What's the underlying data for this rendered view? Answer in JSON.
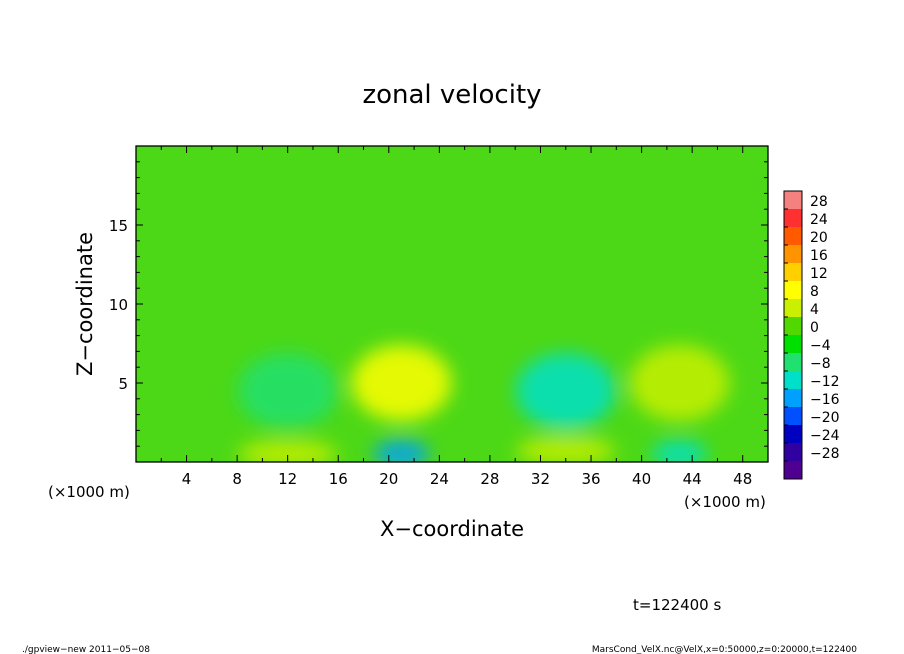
{
  "chart_data": {
    "type": "heatmap",
    "title": "zonal velocity",
    "xlabel": "X−coordinate",
    "ylabel": "Z−coordinate",
    "x_unit": "(×1000 m)",
    "xlim": [
      0,
      50
    ],
    "ylim": [
      0,
      20
    ],
    "x_ticks": [
      "4",
      "8",
      "12",
      "16",
      "20",
      "24",
      "28",
      "32",
      "36",
      "40",
      "44",
      "48"
    ],
    "y_ticks": [
      "5",
      "10",
      "15"
    ],
    "time_label": "t=122400 s",
    "colorbar": {
      "levels": [
        "28",
        "24",
        "20",
        "16",
        "12",
        "8",
        "4",
        "0",
        "−4",
        "−8",
        "−12",
        "−16",
        "−20",
        "−24",
        "−28"
      ],
      "colors": [
        "#f48080",
        "#ff3030",
        "#ff5a00",
        "#ff9400",
        "#ffd000",
        "#ffff00",
        "#c8f000",
        "#50d800",
        "#00e000",
        "#20e070",
        "#00e0c8",
        "#00a0ff",
        "#0050ff",
        "#0000c0",
        "#3000a0",
        "#500090"
      ]
    },
    "features": [
      {
        "x": 21,
        "z": 5,
        "sign": "positive",
        "value": 8
      },
      {
        "x": 43,
        "z": 5,
        "sign": "positive",
        "value": 6
      },
      {
        "x": 12,
        "z": 4.5,
        "sign": "negative",
        "value": -8
      },
      {
        "x": 34,
        "z": 4.5,
        "sign": "negative",
        "value": -9
      },
      {
        "x": 21,
        "z": 0.5,
        "sign": "negative",
        "value": -14
      },
      {
        "x": 43,
        "z": 0.5,
        "sign": "negative",
        "value": -12
      },
      {
        "x": 12,
        "z": 0.5,
        "sign": "positive",
        "value": 6
      },
      {
        "x": 34,
        "z": 0.7,
        "sign": "positive",
        "value": 6
      }
    ]
  },
  "footer": {
    "left": "./gpview−new   2011−05−08",
    "right": "MarsCond_VelX.nc@VelX,x=0:50000,z=0:20000,t=122400"
  }
}
